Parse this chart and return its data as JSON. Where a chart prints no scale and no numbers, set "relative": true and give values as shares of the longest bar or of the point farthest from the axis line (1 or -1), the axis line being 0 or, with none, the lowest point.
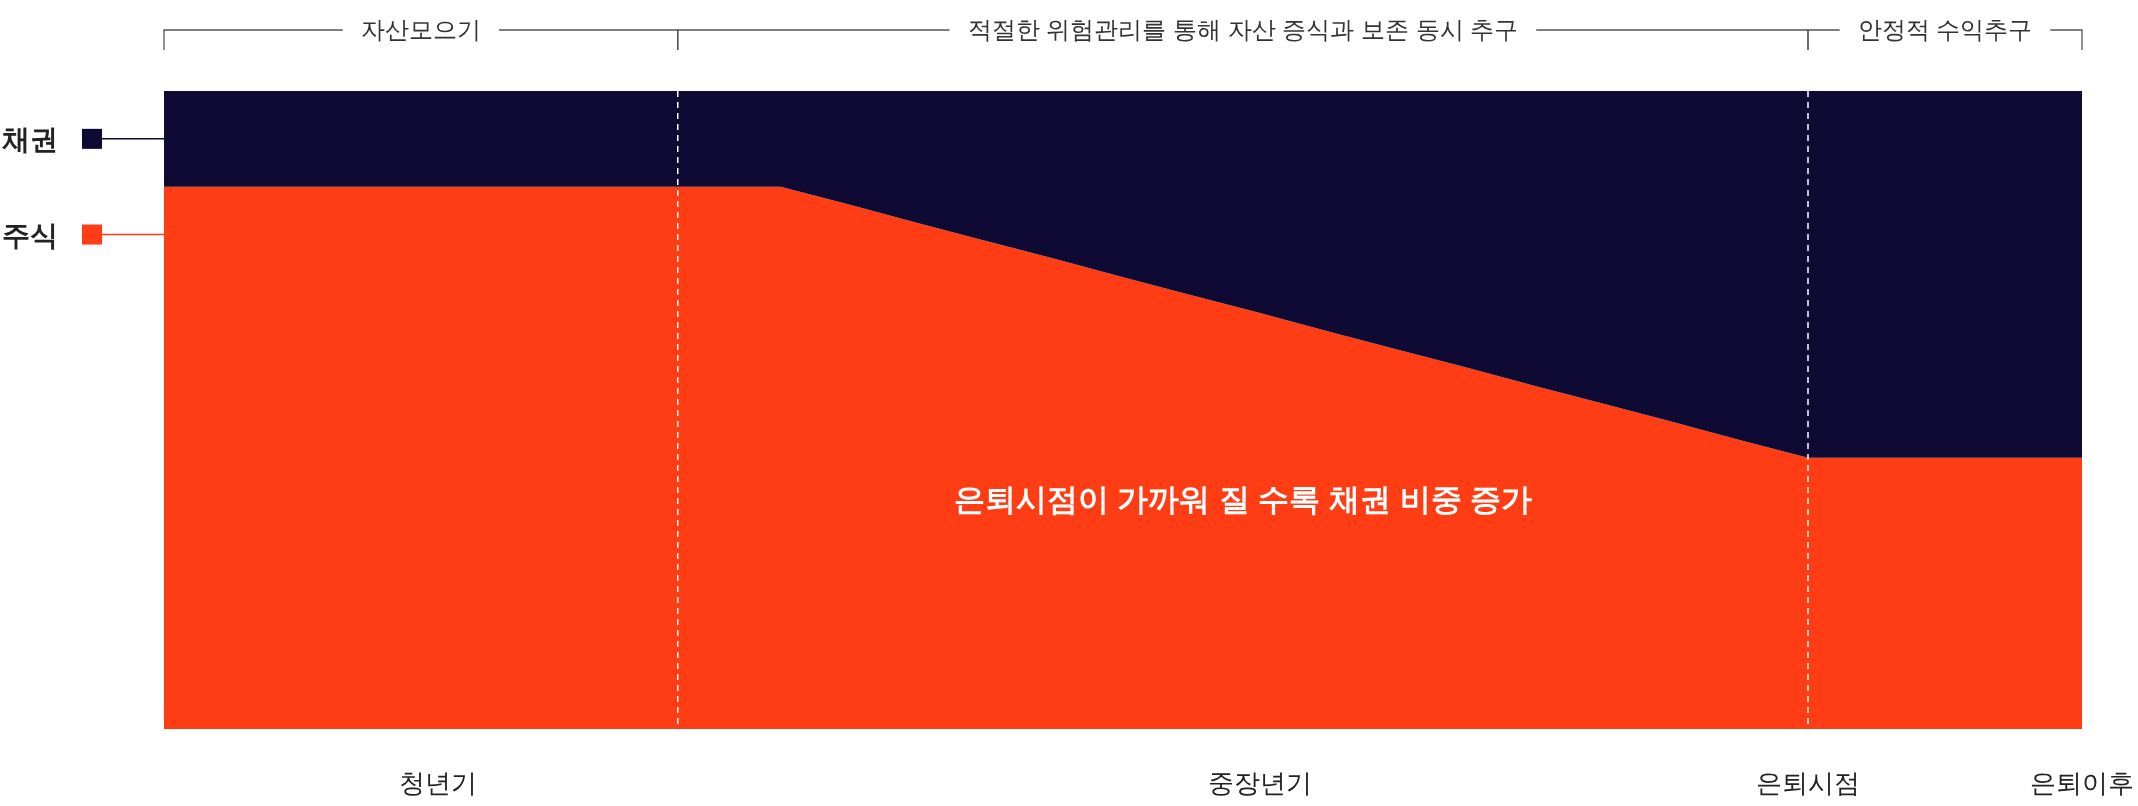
{
  "chart_data": {
    "type": "area",
    "stacked": true,
    "relative": true,
    "categories": [
      null,
      null,
      null,
      null,
      "청년기",
      null,
      null,
      null,
      null,
      null,
      null,
      null,
      null,
      null,
      null,
      null,
      "중장년기",
      null,
      null,
      null,
      null,
      null,
      null,
      null,
      "은퇴시점",
      null,
      null,
      null,
      "은퇴이후"
    ],
    "series": [
      {
        "name": "주식",
        "color": "#ff3d14",
        "values": [
          0.85,
          0.85,
          0.85,
          0.85,
          0.85,
          0.85,
          0.85,
          0.85,
          0.85,
          0.85,
          0.822,
          0.793,
          0.765,
          0.737,
          0.708,
          0.68,
          0.652,
          0.623,
          0.595,
          0.567,
          0.538,
          0.51,
          0.482,
          0.453,
          0.425,
          0.425,
          0.425,
          0.425,
          0.425
        ]
      },
      {
        "name": "채권",
        "color": "#0f0a33",
        "values": [
          0.15,
          0.15,
          0.15,
          0.15,
          0.15,
          0.15,
          0.15,
          0.15,
          0.15,
          0.15,
          0.178,
          0.207,
          0.235,
          0.263,
          0.292,
          0.32,
          0.348,
          0.377,
          0.405,
          0.433,
          0.462,
          0.49,
          0.518,
          0.547,
          0.575,
          0.575,
          0.575,
          0.575,
          0.575
        ]
      }
    ],
    "ref_lines": [
      {
        "axis": "x",
        "value": "은퇴시점",
        "color": "#ffffff",
        "line_style": "dashed"
      }
    ],
    "annotations": [
      "자산모으기",
      "적절한 위험관리를 통해 자산 증식과 보존 동시 추구",
      "안정적 수익추구",
      "은퇴시점이 가까워 질 수록 채권 비중 증가"
    ],
    "legend": "left"
  }
}
